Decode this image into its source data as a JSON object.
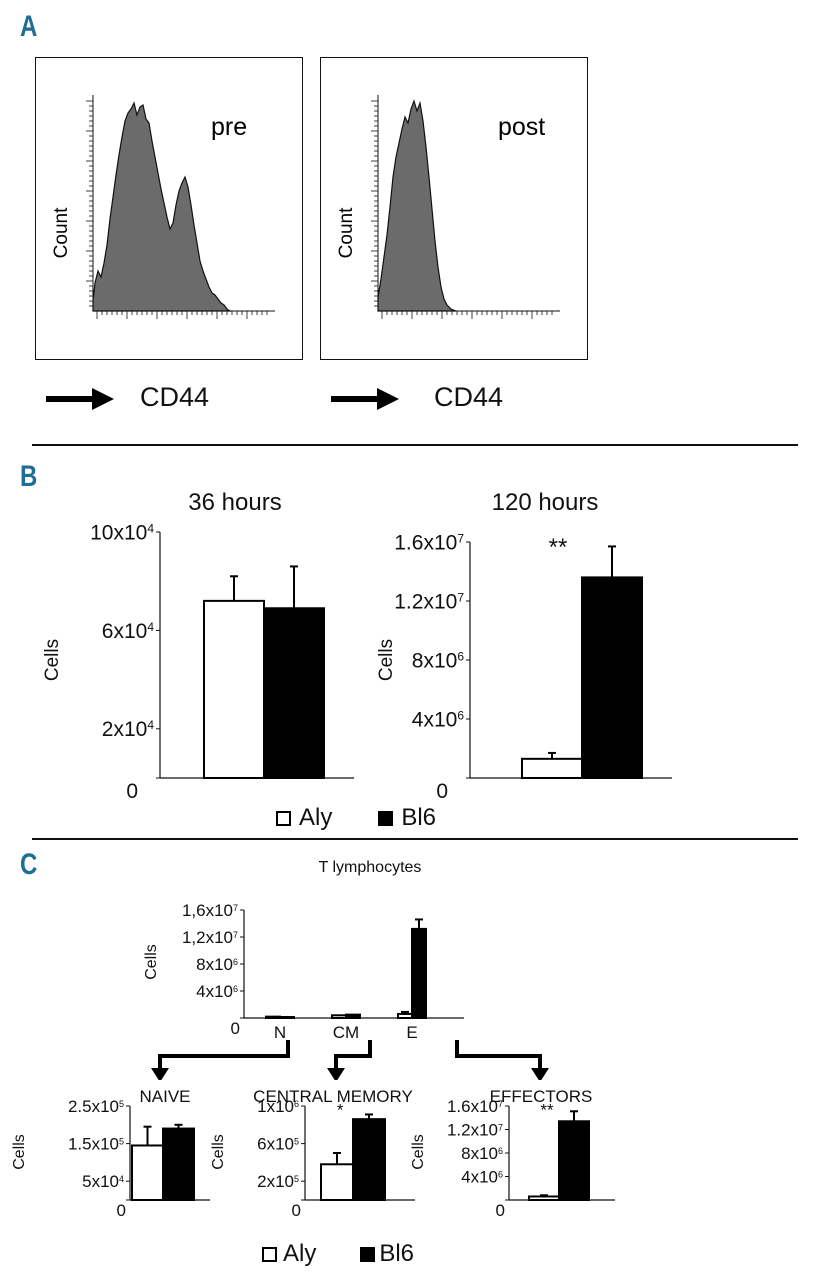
{
  "panels": {
    "a": "A",
    "b": "B",
    "c": "C"
  },
  "panel_a": {
    "histograms": [
      {
        "label": "pre",
        "ylabel": "Count",
        "xlabel": "CD44"
      },
      {
        "label": "post",
        "ylabel": "Count",
        "xlabel": "CD44"
      }
    ]
  },
  "panel_b": {
    "legend": {
      "aly": "Aly",
      "bl6": "Bl6"
    }
  },
  "panel_c": {
    "legend": {
      "aly": "Aly",
      "bl6": "Bl6"
    }
  },
  "colors": {
    "aly": "#ffffff",
    "bl6": "#000000",
    "fill": "#6b6b6b",
    "accent": "#1f6e95"
  },
  "chart_data": [
    {
      "id": "b36",
      "type": "bar",
      "title": "36 hours",
      "ylabel": "Cells",
      "ylim": [
        0,
        100000
      ],
      "yticks": [
        0,
        20000,
        60000,
        100000
      ],
      "ytick_labels": [
        [
          "0",
          ""
        ],
        [
          "2x10",
          "4"
        ],
        [
          "6x10",
          "4"
        ],
        [
          "10x10",
          "4"
        ]
      ],
      "series": [
        {
          "name": "Aly",
          "values": [
            72000
          ],
          "errors": [
            10000
          ]
        },
        {
          "name": "Bl6",
          "values": [
            69000
          ],
          "errors": [
            17000
          ]
        }
      ],
      "stars": ""
    },
    {
      "id": "b120",
      "type": "bar",
      "title": "120 hours",
      "ylabel": "Cells",
      "ylim": [
        0,
        16000000
      ],
      "yticks": [
        0,
        4000000,
        8000000,
        12000000,
        16000000
      ],
      "ytick_labels": [
        [
          "0",
          ""
        ],
        [
          "4x10",
          "6"
        ],
        [
          "8x10",
          "6"
        ],
        [
          "1.2x10",
          "7"
        ],
        [
          "1.6x10",
          "7"
        ]
      ],
      "series": [
        {
          "name": "Aly",
          "values": [
            1300000
          ],
          "errors": [
            400000
          ]
        },
        {
          "name": "Bl6",
          "values": [
            13600000
          ],
          "errors": [
            2100000
          ]
        }
      ],
      "stars": "**"
    },
    {
      "id": "ct",
      "type": "bar",
      "title": "T lymphocytes",
      "ylabel": "Cells",
      "ylim": [
        0,
        16000000
      ],
      "yticks": [
        0,
        4000000,
        8000000,
        12000000,
        16000000
      ],
      "ytick_labels": [
        [
          "0",
          ""
        ],
        [
          "4x10",
          "6"
        ],
        [
          "8x10",
          "6"
        ],
        [
          "1,2x10",
          "7"
        ],
        [
          "1,6x10",
          "7"
        ]
      ],
      "categories": [
        "N",
        "CM",
        "E"
      ],
      "series": [
        {
          "name": "Aly",
          "values": [
            200000,
            400000,
            600000
          ],
          "errors": [
            0,
            0,
            300000
          ]
        },
        {
          "name": "Bl6",
          "values": [
            150000,
            500000,
            13200000
          ],
          "errors": [
            0,
            0,
            1400000
          ]
        }
      ],
      "stars": ""
    },
    {
      "id": "cn",
      "type": "bar",
      "title": "NAIVE",
      "ylabel": "Cells",
      "ylim": [
        0,
        250000
      ],
      "yticks": [
        0,
        50000,
        150000,
        250000
      ],
      "ytick_labels": [
        [
          "0",
          ""
        ],
        [
          "5x10",
          "4"
        ],
        [
          "1.5x10",
          "5"
        ],
        [
          "2.5x10",
          "5"
        ]
      ],
      "series": [
        {
          "name": "Aly",
          "values": [
            145000
          ],
          "errors": [
            50000
          ]
        },
        {
          "name": "Bl6",
          "values": [
            190000
          ],
          "errors": [
            10000
          ]
        }
      ],
      "stars": ""
    },
    {
      "id": "ccm",
      "type": "bar",
      "title": "CENTRAL MEMORY",
      "ylabel": "Cells",
      "ylim": [
        0,
        1000000
      ],
      "yticks": [
        0,
        200000,
        600000,
        1000000
      ],
      "ytick_labels": [
        [
          "0",
          ""
        ],
        [
          "2x10",
          "5"
        ],
        [
          "6x10",
          "5"
        ],
        [
          "1x10",
          "6"
        ]
      ],
      "series": [
        {
          "name": "Aly",
          "values": [
            380000
          ],
          "errors": [
            120000
          ]
        },
        {
          "name": "Bl6",
          "values": [
            860000
          ],
          "errors": [
            50000
          ]
        }
      ],
      "stars": "*"
    },
    {
      "id": "ce",
      "type": "bar",
      "title": "EFFECTORS",
      "ylabel": "Cells",
      "ylim": [
        0,
        16000000
      ],
      "yticks": [
        0,
        4000000,
        8000000,
        12000000,
        16000000
      ],
      "ytick_labels": [
        [
          "0",
          ""
        ],
        [
          "4x10",
          "6"
        ],
        [
          "8x10",
          "6"
        ],
        [
          "1.2x10",
          "7"
        ],
        [
          "1.6x10",
          "7"
        ]
      ],
      "series": [
        {
          "name": "Aly",
          "values": [
            600000
          ],
          "errors": [
            200000
          ]
        },
        {
          "name": "Bl6",
          "values": [
            13400000
          ],
          "errors": [
            1700000
          ]
        }
      ],
      "stars": "**"
    }
  ]
}
